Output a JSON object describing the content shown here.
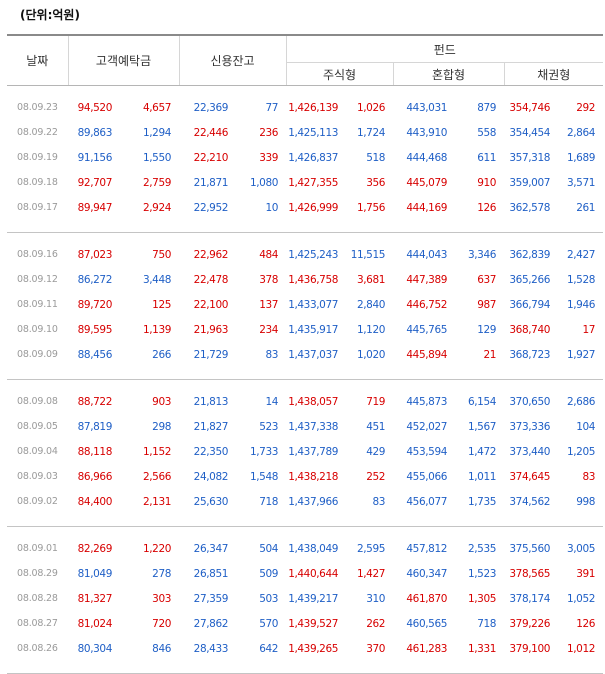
{
  "unit_label": "(단위:억원)",
  "headers": {
    "date": "날짜",
    "deposit": "고객예탁금",
    "credit": "신용잔고",
    "fund": "펀드",
    "stock": "주식형",
    "mixed": "혼합형",
    "bond": "채권형"
  },
  "groups": [
    {
      "rows": [
        {
          "date": "08.09.23",
          "dep": "94,520",
          "dep_chg": "4,657",
          "dep_dir": "up",
          "cred": "22,369",
          "cred_chg": "77",
          "cred_dir": "dn",
          "stock": "1,426,139",
          "stock_chg": "1,026",
          "stock_dir": "up",
          "mixed": "443,031",
          "mixed_chg": "879",
          "mixed_dir": "dn",
          "bond": "354,746",
          "bond_chg": "292",
          "bond_dir": "up"
        },
        {
          "date": "08.09.22",
          "dep": "89,863",
          "dep_chg": "1,294",
          "dep_dir": "dn",
          "cred": "22,446",
          "cred_chg": "236",
          "cred_dir": "up",
          "stock": "1,425,113",
          "stock_chg": "1,724",
          "stock_dir": "dn",
          "mixed": "443,910",
          "mixed_chg": "558",
          "mixed_dir": "dn",
          "bond": "354,454",
          "bond_chg": "2,864",
          "bond_dir": "dn"
        },
        {
          "date": "08.09.19",
          "dep": "91,156",
          "dep_chg": "1,550",
          "dep_dir": "dn",
          "cred": "22,210",
          "cred_chg": "339",
          "cred_dir": "up",
          "stock": "1,426,837",
          "stock_chg": "518",
          "stock_dir": "dn",
          "mixed": "444,468",
          "mixed_chg": "611",
          "mixed_dir": "dn",
          "bond": "357,318",
          "bond_chg": "1,689",
          "bond_dir": "dn"
        },
        {
          "date": "08.09.18",
          "dep": "92,707",
          "dep_chg": "2,759",
          "dep_dir": "up",
          "cred": "21,871",
          "cred_chg": "1,080",
          "cred_dir": "dn",
          "stock": "1,427,355",
          "stock_chg": "356",
          "stock_dir": "up",
          "mixed": "445,079",
          "mixed_chg": "910",
          "mixed_dir": "up",
          "bond": "359,007",
          "bond_chg": "3,571",
          "bond_dir": "dn"
        },
        {
          "date": "08.09.17",
          "dep": "89,947",
          "dep_chg": "2,924",
          "dep_dir": "up",
          "cred": "22,952",
          "cred_chg": "10",
          "cred_dir": "dn",
          "stock": "1,426,999",
          "stock_chg": "1,756",
          "stock_dir": "up",
          "mixed": "444,169",
          "mixed_chg": "126",
          "mixed_dir": "up",
          "bond": "362,578",
          "bond_chg": "261",
          "bond_dir": "dn"
        }
      ]
    },
    {
      "rows": [
        {
          "date": "08.09.16",
          "dep": "87,023",
          "dep_chg": "750",
          "dep_dir": "up",
          "cred": "22,962",
          "cred_chg": "484",
          "cred_dir": "up",
          "stock": "1,425,243",
          "stock_chg": "11,515",
          "stock_dir": "dn",
          "mixed": "444,043",
          "mixed_chg": "3,346",
          "mixed_dir": "dn",
          "bond": "362,839",
          "bond_chg": "2,427",
          "bond_dir": "dn"
        },
        {
          "date": "08.09.12",
          "dep": "86,272",
          "dep_chg": "3,448",
          "dep_dir": "dn",
          "cred": "22,478",
          "cred_chg": "378",
          "cred_dir": "up",
          "stock": "1,436,758",
          "stock_chg": "3,681",
          "stock_dir": "up",
          "mixed": "447,389",
          "mixed_chg": "637",
          "mixed_dir": "up",
          "bond": "365,266",
          "bond_chg": "1,528",
          "bond_dir": "dn"
        },
        {
          "date": "08.09.11",
          "dep": "89,720",
          "dep_chg": "125",
          "dep_dir": "up",
          "cred": "22,100",
          "cred_chg": "137",
          "cred_dir": "up",
          "stock": "1,433,077",
          "stock_chg": "2,840",
          "stock_dir": "dn",
          "mixed": "446,752",
          "mixed_chg": "987",
          "mixed_dir": "up",
          "bond": "366,794",
          "bond_chg": "1,946",
          "bond_dir": "dn"
        },
        {
          "date": "08.09.10",
          "dep": "89,595",
          "dep_chg": "1,139",
          "dep_dir": "up",
          "cred": "21,963",
          "cred_chg": "234",
          "cred_dir": "up",
          "stock": "1,435,917",
          "stock_chg": "1,120",
          "stock_dir": "dn",
          "mixed": "445,765",
          "mixed_chg": "129",
          "mixed_dir": "dn",
          "bond": "368,740",
          "bond_chg": "17",
          "bond_dir": "up"
        },
        {
          "date": "08.09.09",
          "dep": "88,456",
          "dep_chg": "266",
          "dep_dir": "dn",
          "cred": "21,729",
          "cred_chg": "83",
          "cred_dir": "dn",
          "stock": "1,437,037",
          "stock_chg": "1,020",
          "stock_dir": "dn",
          "mixed": "445,894",
          "mixed_chg": "21",
          "mixed_dir": "up",
          "bond": "368,723",
          "bond_chg": "1,927",
          "bond_dir": "dn"
        }
      ]
    },
    {
      "rows": [
        {
          "date": "08.09.08",
          "dep": "88,722",
          "dep_chg": "903",
          "dep_dir": "up",
          "cred": "21,813",
          "cred_chg": "14",
          "cred_dir": "dn",
          "stock": "1,438,057",
          "stock_chg": "719",
          "stock_dir": "up",
          "mixed": "445,873",
          "mixed_chg": "6,154",
          "mixed_dir": "dn",
          "bond": "370,650",
          "bond_chg": "2,686",
          "bond_dir": "dn"
        },
        {
          "date": "08.09.05",
          "dep": "87,819",
          "dep_chg": "298",
          "dep_dir": "dn",
          "cred": "21,827",
          "cred_chg": "523",
          "cred_dir": "dn",
          "stock": "1,437,338",
          "stock_chg": "451",
          "stock_dir": "dn",
          "mixed": "452,027",
          "mixed_chg": "1,567",
          "mixed_dir": "dn",
          "bond": "373,336",
          "bond_chg": "104",
          "bond_dir": "dn"
        },
        {
          "date": "08.09.04",
          "dep": "88,118",
          "dep_chg": "1,152",
          "dep_dir": "up",
          "cred": "22,350",
          "cred_chg": "1,733",
          "cred_dir": "dn",
          "stock": "1,437,789",
          "stock_chg": "429",
          "stock_dir": "dn",
          "mixed": "453,594",
          "mixed_chg": "1,472",
          "mixed_dir": "dn",
          "bond": "373,440",
          "bond_chg": "1,205",
          "bond_dir": "dn"
        },
        {
          "date": "08.09.03",
          "dep": "86,966",
          "dep_chg": "2,566",
          "dep_dir": "up",
          "cred": "24,082",
          "cred_chg": "1,548",
          "cred_dir": "dn",
          "stock": "1,438,218",
          "stock_chg": "252",
          "stock_dir": "up",
          "mixed": "455,066",
          "mixed_chg": "1,011",
          "mixed_dir": "dn",
          "bond": "374,645",
          "bond_chg": "83",
          "bond_dir": "up"
        },
        {
          "date": "08.09.02",
          "dep": "84,400",
          "dep_chg": "2,131",
          "dep_dir": "up",
          "cred": "25,630",
          "cred_chg": "718",
          "cred_dir": "dn",
          "stock": "1,437,966",
          "stock_chg": "83",
          "stock_dir": "dn",
          "mixed": "456,077",
          "mixed_chg": "1,735",
          "mixed_dir": "dn",
          "bond": "374,562",
          "bond_chg": "998",
          "bond_dir": "dn"
        }
      ]
    },
    {
      "rows": [
        {
          "date": "08.09.01",
          "dep": "82,269",
          "dep_chg": "1,220",
          "dep_dir": "up",
          "cred": "26,347",
          "cred_chg": "504",
          "cred_dir": "dn",
          "stock": "1,438,049",
          "stock_chg": "2,595",
          "stock_dir": "dn",
          "mixed": "457,812",
          "mixed_chg": "2,535",
          "mixed_dir": "dn",
          "bond": "375,560",
          "bond_chg": "3,005",
          "bond_dir": "dn"
        },
        {
          "date": "08.08.29",
          "dep": "81,049",
          "dep_chg": "278",
          "dep_dir": "dn",
          "cred": "26,851",
          "cred_chg": "509",
          "cred_dir": "dn",
          "stock": "1,440,644",
          "stock_chg": "1,427",
          "stock_dir": "up",
          "mixed": "460,347",
          "mixed_chg": "1,523",
          "mixed_dir": "dn",
          "bond": "378,565",
          "bond_chg": "391",
          "bond_dir": "up"
        },
        {
          "date": "08.08.28",
          "dep": "81,327",
          "dep_chg": "303",
          "dep_dir": "up",
          "cred": "27,359",
          "cred_chg": "503",
          "cred_dir": "dn",
          "stock": "1,439,217",
          "stock_chg": "310",
          "stock_dir": "dn",
          "mixed": "461,870",
          "mixed_chg": "1,305",
          "mixed_dir": "up",
          "bond": "378,174",
          "bond_chg": "1,052",
          "bond_dir": "dn"
        },
        {
          "date": "08.08.27",
          "dep": "81,024",
          "dep_chg": "720",
          "dep_dir": "up",
          "cred": "27,862",
          "cred_chg": "570",
          "cred_dir": "dn",
          "stock": "1,439,527",
          "stock_chg": "262",
          "stock_dir": "up",
          "mixed": "460,565",
          "mixed_chg": "718",
          "mixed_dir": "dn",
          "bond": "379,226",
          "bond_chg": "126",
          "bond_dir": "up"
        },
        {
          "date": "08.08.26",
          "dep": "80,304",
          "dep_chg": "846",
          "dep_dir": "dn",
          "cred": "28,433",
          "cred_chg": "642",
          "cred_dir": "dn",
          "stock": "1,439,265",
          "stock_chg": "370",
          "stock_dir": "up",
          "mixed": "461,283",
          "mixed_chg": "1,331",
          "mixed_dir": "up",
          "bond": "379,100",
          "bond_chg": "1,012",
          "bond_dir": "up"
        }
      ]
    }
  ],
  "colors": {
    "up": "#d70000",
    "down": "#1f5fc6",
    "date": "#9a9a9a"
  }
}
